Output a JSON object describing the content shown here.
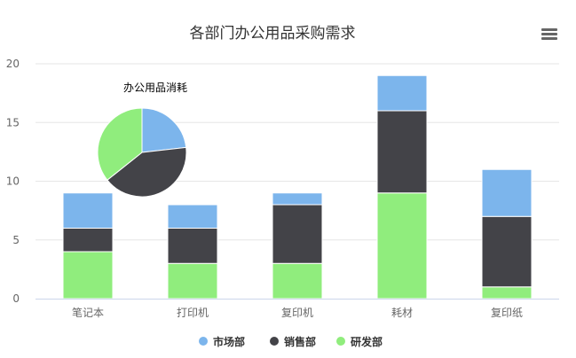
{
  "chart_data": [
    {
      "type": "bar",
      "stacked": true,
      "title": "各部门办公用品采购需求",
      "xlabel": "",
      "ylabel": "",
      "categories": [
        "笔记本",
        "打印机",
        "复印机",
        "耗材",
        "复印纸"
      ],
      "ylim": [
        0,
        20
      ],
      "yticks": [
        0,
        5,
        10,
        15,
        20
      ],
      "grid": true,
      "legend_position": "bottom",
      "series": [
        {
          "name": "研发部",
          "color": "#90ed7d",
          "values": [
            4,
            3,
            3,
            9,
            1
          ]
        },
        {
          "name": "销售部",
          "color": "#434348",
          "values": [
            2,
            3,
            5,
            7,
            6
          ]
        },
        {
          "name": "市场部",
          "color": "#7cb5ec",
          "values": [
            3,
            2,
            1,
            3,
            4
          ]
        }
      ],
      "legend_order": [
        "市场部",
        "销售部",
        "研发部"
      ]
    },
    {
      "type": "pie",
      "title": "办公用品消耗",
      "slices": [
        {
          "name": "市场部",
          "value": 13,
          "color": "#7cb5ec"
        },
        {
          "name": "销售部",
          "value": 23,
          "color": "#434348"
        },
        {
          "name": "研发部",
          "value": 20,
          "color": "#90ed7d"
        }
      ]
    }
  ],
  "toolbar": {
    "menu_icon": "hamburger-menu-icon"
  }
}
